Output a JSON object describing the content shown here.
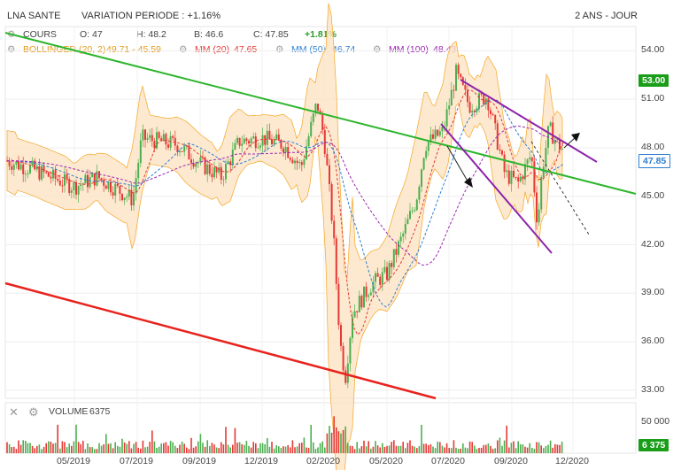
{
  "header": {
    "title": "LNA SANTE",
    "variation": "VARIATION PERIODE : +1.16%",
    "period": "2 ANS - JOUR"
  },
  "legend": {
    "cours": "COURS",
    "open": "O: 47",
    "high": "H: 48.2",
    "low": "B: 46.6",
    "close": "C: 47.85",
    "change": "+1.81%",
    "bollinger_label": "BOLLINGER (20, 2)",
    "bollinger_value": "49.71 - 45.59",
    "mm20_label": "MM (20)",
    "mm20_value": "47.65",
    "mm50_label": "MM (50)",
    "mm50_value": "46.74",
    "mm100_label": "MM (100)",
    "mm100_value": "48.43"
  },
  "volume_panel": {
    "label": "VOLUME",
    "value": "6375",
    "axis_max": "50 000",
    "badge": "6 375"
  },
  "badges": {
    "resistance": "53.00",
    "last": "47.85"
  },
  "colors": {
    "up": "#4caf50",
    "down": "#e53935",
    "bollinger": "#f5a623",
    "mm20": "#e53935",
    "mm50": "#2f7fd1",
    "mm100": "#9c27b0",
    "trend_green": "#2db52d",
    "trend_red": "#e8221c",
    "channel_purple": "#8e24aa",
    "badge_green": "#1a9e1a"
  },
  "chart_data": {
    "type": "candlestick",
    "title": "LNA SANTE",
    "x_ticks": [
      "05/2019",
      "07/2019",
      "09/2019",
      "12/2019",
      "02/2020",
      "05/2020",
      "07/2020",
      "09/2020",
      "12/2020"
    ],
    "y_ticks": [
      54.0,
      51.0,
      48.0,
      45.0,
      42.0,
      39.0,
      36.0,
      33.0
    ],
    "ylim": [
      32.5,
      55.5
    ],
    "series": [
      {
        "name": "COURS",
        "x": [
          "05/2019",
          "07/2019",
          "09/2019",
          "12/2019",
          "02/2020",
          "05/2020",
          "07/2020",
          "09/2020",
          "12/2020"
        ],
        "values": [
          46.5,
          47.5,
          47.0,
          48.5,
          49.0,
          39.5,
          51.0,
          46.0,
          47.85
        ]
      },
      {
        "name": "BOLLINGER (20, 2)",
        "values_last": [
          49.71,
          45.59
        ]
      },
      {
        "name": "MM (20)",
        "value_last": 47.65
      },
      {
        "name": "MM (50)",
        "value_last": 46.74
      },
      {
        "name": "MM (100)",
        "value_last": 48.43
      }
    ],
    "last": {
      "open": 47,
      "high": 48.2,
      "low": 46.6,
      "close": 47.85,
      "change_pct": 1.81
    },
    "volume": {
      "last": 6375,
      "axis_max": 50000
    },
    "grid": true,
    "legend": "top-left"
  }
}
